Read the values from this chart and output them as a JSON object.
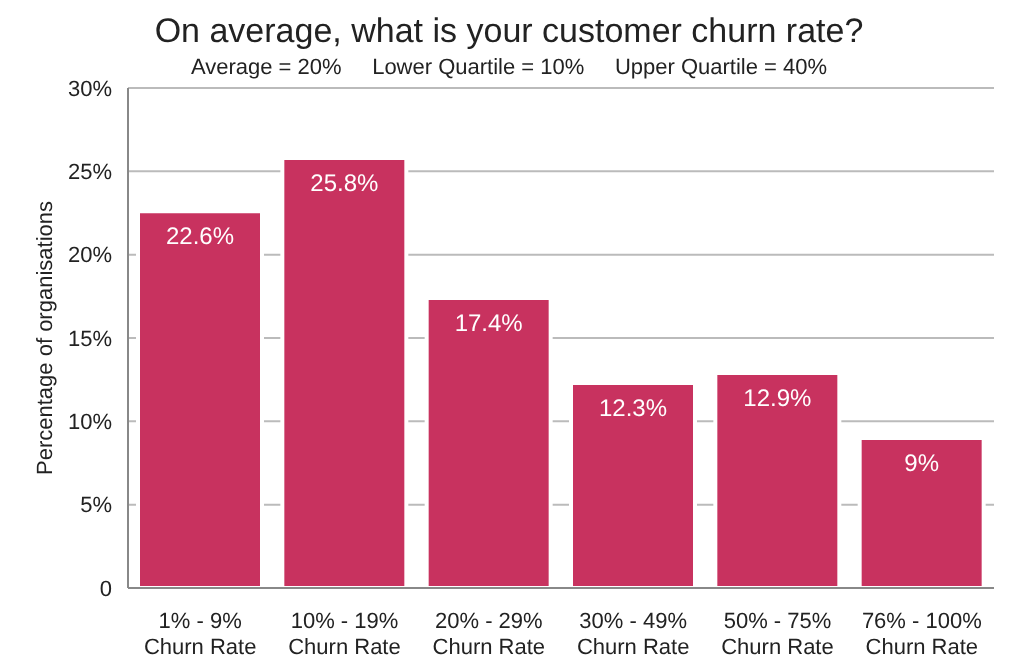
{
  "chart_data": {
    "type": "bar",
    "title": "On average, what is your customer churn rate?",
    "subtitle": "Average = 20%     Lower Quartile = 10%     Upper Quartile = 40%",
    "ylabel": "Percentage of organisations",
    "categories": [
      "1% - 9%\nChurn Rate",
      "10% - 19%\nChurn Rate",
      "20% - 29%\nChurn Rate",
      "30% - 49%\nChurn Rate",
      "50% - 75%\nChurn Rate",
      "76% - 100%\nChurn Rate"
    ],
    "values": [
      22.6,
      25.8,
      17.4,
      12.3,
      12.9,
      9
    ],
    "value_labels": [
      "22.6%",
      "25.8%",
      "17.4%",
      "12.3%",
      "12.9%",
      "9%"
    ],
    "color": "#c8325f",
    "ylim": [
      0,
      30
    ],
    "yticks": [
      {
        "value": 0,
        "label": "0"
      },
      {
        "value": 5,
        "label": "5%"
      },
      {
        "value": 10,
        "label": "10%"
      },
      {
        "value": 15,
        "label": "15%"
      },
      {
        "value": 20,
        "label": "20%"
      },
      {
        "value": 25,
        "label": "25%"
      },
      {
        "value": 30,
        "label": "30%"
      }
    ],
    "grid": "y"
  }
}
